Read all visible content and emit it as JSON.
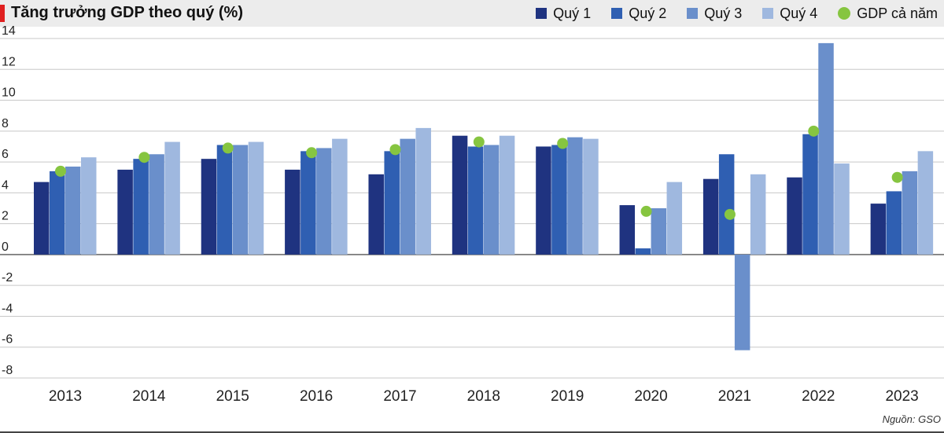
{
  "header": {
    "title": "Tăng trưởng GDP theo quý (%)"
  },
  "colors": {
    "accent": "#e02020",
    "q1": "#1f3380",
    "q2": "#2f5fb2",
    "q3": "#6a8fcb",
    "q4": "#9fb8df",
    "annual": "#86c540",
    "grid": "#c8c8c8",
    "zero": "#555555"
  },
  "source": "Nguồn: GSO",
  "chart_data": {
    "type": "bar",
    "title": "Tăng trưởng GDP theo quý (%)",
    "categories": [
      "2013",
      "2014",
      "2015",
      "2016",
      "2017",
      "2018",
      "2019",
      "2020",
      "2021",
      "2022",
      "2023"
    ],
    "series": [
      {
        "name": "Quý 1",
        "values": [
          4.7,
          5.5,
          6.2,
          5.5,
          5.2,
          7.7,
          7.0,
          3.2,
          4.9,
          5.0,
          3.3
        ]
      },
      {
        "name": "Quý 2",
        "values": [
          5.4,
          6.2,
          7.1,
          6.7,
          6.7,
          7.0,
          7.1,
          0.4,
          6.5,
          7.8,
          4.1
        ]
      },
      {
        "name": "Quý 3",
        "values": [
          5.7,
          6.5,
          7.1,
          6.9,
          7.5,
          7.1,
          7.6,
          3.0,
          -6.2,
          13.7,
          5.4
        ]
      },
      {
        "name": "Quý 4",
        "values": [
          6.3,
          7.3,
          7.3,
          7.5,
          8.2,
          7.7,
          7.5,
          4.7,
          5.2,
          5.9,
          6.7
        ]
      }
    ],
    "annual": {
      "name": "GDP cả năm",
      "values": [
        5.4,
        6.3,
        6.9,
        6.6,
        6.8,
        7.3,
        7.2,
        2.8,
        2.6,
        8.0,
        5.0
      ]
    },
    "ylim": [
      -8,
      14
    ],
    "yticks": [
      -8,
      -6,
      -4,
      -2,
      0,
      2,
      4,
      6,
      8,
      10,
      12,
      14
    ],
    "grid": true,
    "legend_position": "top-right"
  }
}
